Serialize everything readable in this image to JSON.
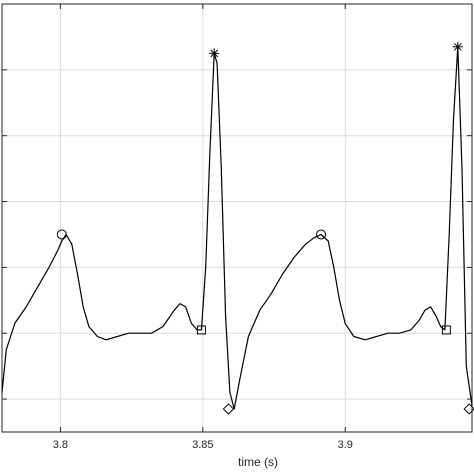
{
  "chart_data": {
    "type": "line",
    "xlabel": "time (s)",
    "ylabel": "",
    "title": "",
    "xlim": [
      3.7795,
      3.9445
    ],
    "ylim": [
      -0.3,
      1.0
    ],
    "grid": true,
    "x_ticks": [
      3.8,
      3.85,
      3.9
    ],
    "x_tick_labels": [
      "3.8",
      "3.85",
      "3.9"
    ],
    "y_ticks": [
      -0.2,
      0.0,
      0.2,
      0.4,
      0.6,
      0.8
    ],
    "series": [
      {
        "style": "line",
        "color": "#000000",
        "x": [
          3.7795,
          3.781,
          3.784,
          3.788,
          3.792,
          3.796,
          3.799,
          3.8005,
          3.802,
          3.804,
          3.806,
          3.808,
          3.81,
          3.813,
          3.816,
          3.82,
          3.824,
          3.828,
          3.832,
          3.836,
          3.84,
          3.842,
          3.844,
          3.846,
          3.848,
          3.8495,
          3.851,
          3.8525,
          3.854,
          3.855,
          3.8565,
          3.858,
          3.8595,
          3.861,
          3.863,
          3.866,
          3.87,
          3.874,
          3.878,
          3.882,
          3.886,
          3.889,
          3.8915,
          3.894,
          3.896,
          3.898,
          3.9,
          3.903,
          3.907,
          3.911,
          3.915,
          3.919,
          3.923,
          3.926,
          3.928,
          3.93,
          3.932,
          3.9335,
          3.935,
          3.9365,
          3.938,
          3.9395,
          3.941,
          3.9425,
          3.9445
        ],
        "y": [
          -0.18,
          -0.05,
          0.03,
          0.08,
          0.14,
          0.2,
          0.25,
          0.28,
          0.3,
          0.27,
          0.18,
          0.08,
          0.02,
          -0.01,
          -0.02,
          -0.01,
          0.0,
          0.0,
          0.0,
          0.02,
          0.07,
          0.09,
          0.08,
          0.03,
          0.01,
          0.01,
          0.2,
          0.55,
          0.85,
          0.82,
          0.5,
          0.05,
          -0.18,
          -0.23,
          -0.14,
          -0.01,
          0.07,
          0.12,
          0.18,
          0.23,
          0.27,
          0.29,
          0.3,
          0.28,
          0.2,
          0.1,
          0.03,
          -0.01,
          -0.02,
          -0.01,
          0.0,
          0.0,
          0.01,
          0.04,
          0.07,
          0.08,
          0.05,
          0.02,
          0.01,
          0.3,
          0.65,
          0.87,
          0.5,
          -0.1,
          -0.22
        ]
      },
      {
        "style": "marker",
        "marker": "circle",
        "x": [
          3.8005,
          3.8915
        ],
        "y": [
          0.3,
          0.3
        ]
      },
      {
        "style": "marker",
        "marker": "asterisk",
        "x": [
          3.854,
          3.9395
        ],
        "y": [
          0.85,
          0.87
        ]
      },
      {
        "style": "marker",
        "marker": "square",
        "x": [
          3.8495,
          3.9355
        ],
        "y": [
          0.01,
          0.01
        ]
      },
      {
        "style": "marker",
        "marker": "diamond",
        "x": [
          3.859,
          3.9435
        ],
        "y": [
          -0.23,
          -0.23
        ]
      }
    ]
  }
}
